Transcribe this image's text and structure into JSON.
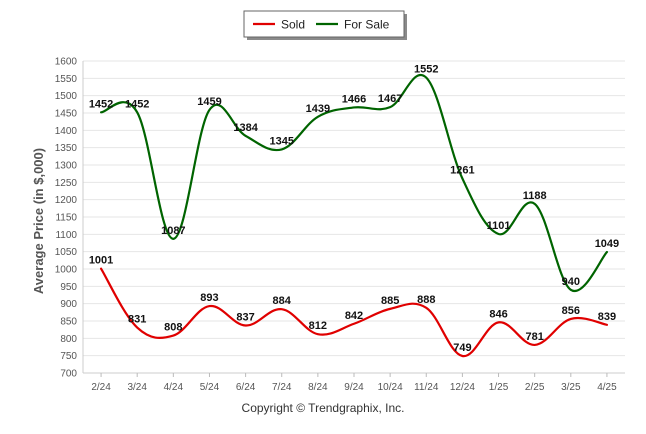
{
  "chart_data": {
    "type": "line",
    "title": "",
    "xlabel": "",
    "ylabel": "Average Price (in $,000)",
    "categories": [
      "2/24",
      "3/24",
      "4/24",
      "5/24",
      "6/24",
      "7/24",
      "8/24",
      "9/24",
      "10/24",
      "11/24",
      "12/24",
      "1/25",
      "2/25",
      "3/25",
      "4/25"
    ],
    "ylim": [
      700,
      1600
    ],
    "yticks": [
      700,
      750,
      800,
      850,
      900,
      950,
      1000,
      1050,
      1100,
      1150,
      1200,
      1250,
      1300,
      1350,
      1400,
      1450,
      1500,
      1550,
      1600
    ],
    "grid": true,
    "legend_position": "top-center",
    "series": [
      {
        "name": "Sold",
        "color": "#e00000",
        "values": [
          1001,
          831,
          808,
          893,
          837,
          884,
          812,
          842,
          885,
          888,
          749,
          846,
          781,
          856,
          839
        ]
      },
      {
        "name": "For Sale",
        "color": "#006400",
        "values": [
          1452,
          1452,
          1087,
          1459,
          1384,
          1345,
          1439,
          1466,
          1467,
          1552,
          1261,
          1101,
          1188,
          940,
          1049
        ]
      }
    ]
  },
  "copyright": "Copyright © Trendgraphix, Inc."
}
